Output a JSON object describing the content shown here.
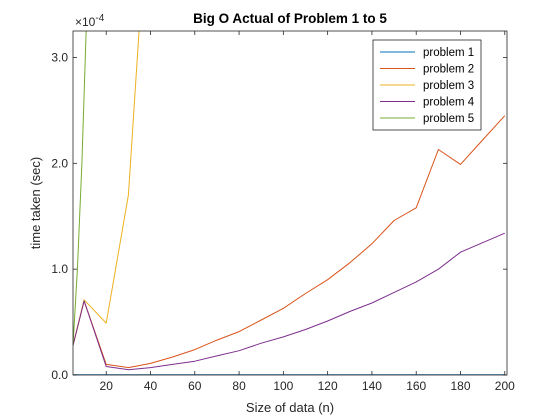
{
  "chart_data": {
    "type": "line",
    "title": "Big O Actual of Problem 1 to 5",
    "xlabel": "Size of data (n)",
    "ylabel": "time taken (sec)",
    "exponent_base": "×10",
    "exponent_power": "-4",
    "xlim": [
      5,
      201
    ],
    "ylim": [
      0,
      3.25
    ],
    "xticks": [
      20,
      40,
      60,
      80,
      100,
      120,
      140,
      160,
      180,
      200
    ],
    "xtick_labels": [
      "20",
      "40",
      "60",
      "80",
      "100",
      "120",
      "140",
      "160",
      "180",
      "200"
    ],
    "yticks": [
      0,
      1,
      2,
      3
    ],
    "ytick_labels": [
      "0.0",
      "1.0",
      "2.0",
      "3.0"
    ],
    "grid": false,
    "legend_position": "top-right",
    "series": [
      {
        "name": "problem 1",
        "color": "#0072bd",
        "x": [
          5,
          10,
          20,
          30,
          40,
          50,
          60,
          70,
          80,
          90,
          100,
          110,
          120,
          130,
          140,
          150,
          160,
          170,
          180,
          190,
          200
        ],
        "y": [
          0.002,
          0.002,
          0.002,
          0.002,
          0.002,
          0.002,
          0.002,
          0.002,
          0.002,
          0.002,
          0.002,
          0.002,
          0.002,
          0.002,
          0.002,
          0.002,
          0.002,
          0.002,
          0.002,
          0.002,
          0.002
        ]
      },
      {
        "name": "problem 2",
        "color": "#d95319",
        "x": [
          5,
          10,
          20,
          30,
          40,
          50,
          60,
          70,
          80,
          90,
          100,
          110,
          120,
          130,
          140,
          150,
          160,
          170,
          180,
          190,
          200
        ],
        "y": [
          0.28,
          0.7,
          0.1,
          0.07,
          0.11,
          0.17,
          0.24,
          0.33,
          0.41,
          0.52,
          0.63,
          0.77,
          0.9,
          1.06,
          1.24,
          1.46,
          1.58,
          2.13,
          1.99,
          2.22,
          2.45
        ]
      },
      {
        "name": "problem 3",
        "color": "#edb120",
        "x": [
          5,
          10,
          20,
          30,
          35
        ],
        "y": [
          0.28,
          0.71,
          0.49,
          1.7,
          3.3
        ]
      },
      {
        "name": "problem 4",
        "color": "#7e2f8e",
        "x": [
          5,
          10,
          20,
          30,
          40,
          50,
          60,
          70,
          80,
          90,
          100,
          110,
          120,
          130,
          140,
          150,
          160,
          170,
          180,
          190,
          200
        ],
        "y": [
          0.28,
          0.7,
          0.08,
          0.05,
          0.07,
          0.1,
          0.13,
          0.18,
          0.23,
          0.3,
          0.36,
          0.43,
          0.51,
          0.6,
          0.68,
          0.78,
          0.88,
          1.0,
          1.16,
          1.25,
          1.34
        ]
      },
      {
        "name": "problem 5",
        "color": "#77ac30",
        "x": [
          5,
          7,
          9,
          11
        ],
        "y": [
          0.28,
          1.0,
          2.0,
          3.3
        ]
      }
    ]
  }
}
